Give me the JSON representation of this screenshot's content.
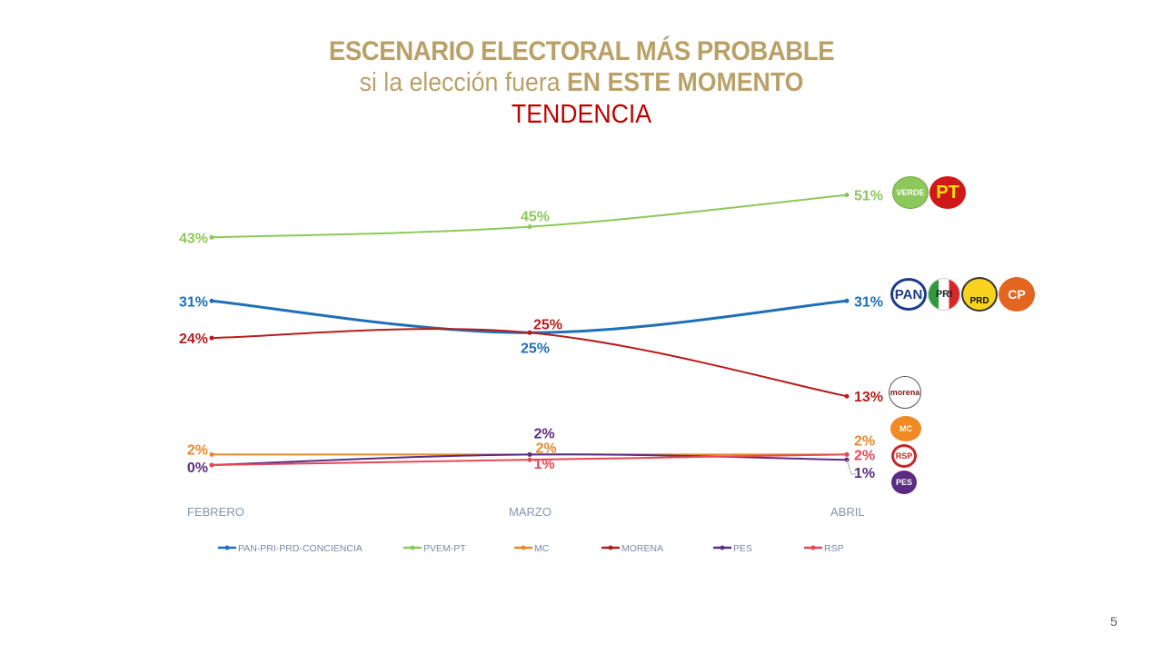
{
  "title": {
    "line1": "ESCENARIO ELECTORAL MÁS PROBABLE",
    "line2_regular": "si la elección fuera ",
    "line2_bold": "EN ESTE MOMENTO",
    "line3": "TENDENCIA"
  },
  "page_number": "5",
  "logos": {
    "verde": "VERDE",
    "pt": "PT",
    "pan": "PAN",
    "pri": "PRI",
    "prd": "PRD",
    "conciencia": "CP",
    "morena": "morena",
    "mc": "MC",
    "rsp": "RSP",
    "pes": "PES"
  },
  "chart_data": {
    "type": "line",
    "title": "ESCENARIO ELECTORAL MÁS PROBABLE si la elección fuera EN ESTE MOMENTO — TENDENCIA",
    "categories": [
      "FEBRERO",
      "MARZO",
      "ABRIL"
    ],
    "xlabel": "",
    "ylabel": "",
    "ylim": [
      0,
      55
    ],
    "grid": false,
    "legend_position": "bottom",
    "series": [
      {
        "name": "PAN-PRI-PRD-CONCIENCIA",
        "color": "#1f6fb8",
        "values": [
          31,
          25,
          31
        ],
        "labels": [
          "31%",
          "25%",
          "31%"
        ]
      },
      {
        "name": "PVEM-PT",
        "color": "#8cc85a",
        "values": [
          43,
          45,
          51
        ],
        "labels": [
          "43%",
          "45%",
          "51%"
        ]
      },
      {
        "name": "MC",
        "color": "#e8892b",
        "values": [
          2,
          2,
          2
        ],
        "labels": [
          "2%",
          "2%",
          "2%"
        ]
      },
      {
        "name": "MORENA",
        "color": "#b71c1c",
        "values": [
          24,
          25,
          13
        ],
        "labels": [
          "24%",
          "25%",
          "13%"
        ]
      },
      {
        "name": "PES",
        "color": "#5b2d82",
        "values": [
          0,
          2,
          1
        ],
        "labels": [
          "0%",
          "2%",
          "1%"
        ]
      },
      {
        "name": "RSP",
        "color": "#e84855",
        "values": [
          0,
          1,
          2
        ],
        "labels": [
          "",
          "1%",
          "2%"
        ]
      }
    ]
  }
}
